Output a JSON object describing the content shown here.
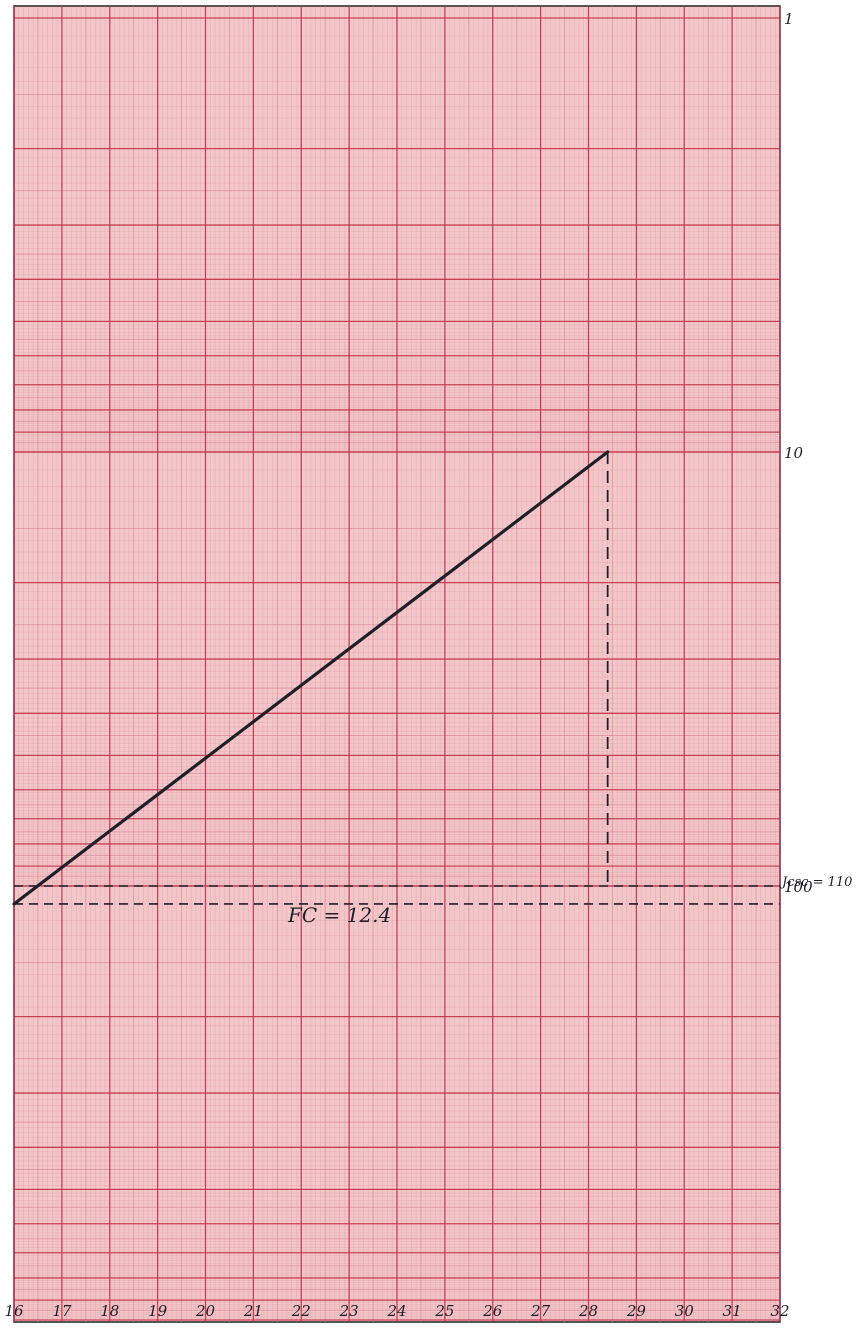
{
  "chart_data": {
    "type": "line",
    "x_ticks": [
      "16",
      "17",
      "18",
      "19",
      "20",
      "21",
      "22",
      "23",
      "24",
      "25",
      "26",
      "27",
      "28",
      "29",
      "30",
      "31",
      "32"
    ],
    "xlim": [
      16,
      32
    ],
    "y_scale": "log",
    "y_decade_labels": [
      "1",
      "10",
      "100"
    ],
    "series": [
      {
        "x": [
          16,
          28.4
        ],
        "y": [
          110,
          10
        ]
      }
    ],
    "reference_lines": [
      {
        "axis": "y",
        "value": 110,
        "label": "Jcsc = 110"
      },
      {
        "axis": "y",
        "value": 100,
        "label": "100"
      },
      {
        "axis": "x",
        "value": 28.4,
        "label": ""
      }
    ],
    "annotation": "FC = 12.4",
    "grid": true
  },
  "colors": {
    "paper": "#f3c6c9",
    "grid_major": "#c2334a",
    "grid_minor": "#d98c95",
    "ink": "#1f1f2a"
  }
}
